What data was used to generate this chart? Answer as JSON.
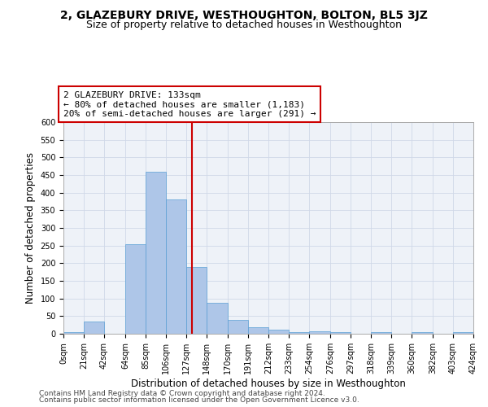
{
  "title": "2, GLAZEBURY DRIVE, WESTHOUGHTON, BOLTON, BL5 3JZ",
  "subtitle": "Size of property relative to detached houses in Westhoughton",
  "xlabel": "Distribution of detached houses by size in Westhoughton",
  "ylabel": "Number of detached properties",
  "bin_edges": [
    0,
    21,
    42,
    64,
    85,
    106,
    127,
    148,
    170,
    191,
    212,
    233,
    254,
    276,
    297,
    318,
    339,
    360,
    382,
    403,
    424
  ],
  "bar_heights": [
    5,
    35,
    0,
    253,
    460,
    381,
    190,
    88,
    40,
    18,
    11,
    5,
    6,
    5,
    0,
    5,
    0,
    5,
    0,
    5
  ],
  "bar_color": "#aec6e8",
  "bar_edgecolor": "#5a9fd4",
  "grid_color": "#d0d8e8",
  "bg_color": "#eef2f8",
  "vline_x": 133,
  "vline_color": "#cc0000",
  "annotation_text": "2 GLAZEBURY DRIVE: 133sqm\n← 80% of detached houses are smaller (1,183)\n20% of semi-detached houses are larger (291) →",
  "annotation_box_edgecolor": "#cc0000",
  "annotation_box_facecolor": "#ffffff",
  "ylim": [
    0,
    600
  ],
  "yticks": [
    0,
    50,
    100,
    150,
    200,
    250,
    300,
    350,
    400,
    450,
    500,
    550,
    600
  ],
  "xtick_labels": [
    "0sqm",
    "21sqm",
    "42sqm",
    "64sqm",
    "85sqm",
    "106sqm",
    "127sqm",
    "148sqm",
    "170sqm",
    "191sqm",
    "212sqm",
    "233sqm",
    "254sqm",
    "276sqm",
    "297sqm",
    "318sqm",
    "339sqm",
    "360sqm",
    "382sqm",
    "403sqm",
    "424sqm"
  ],
  "footer_line1": "Contains HM Land Registry data © Crown copyright and database right 2024.",
  "footer_line2": "Contains public sector information licensed under the Open Government Licence v3.0.",
  "title_fontsize": 10,
  "subtitle_fontsize": 9,
  "axis_label_fontsize": 8.5,
  "tick_fontsize": 7,
  "annotation_fontsize": 8,
  "footer_fontsize": 6.5
}
